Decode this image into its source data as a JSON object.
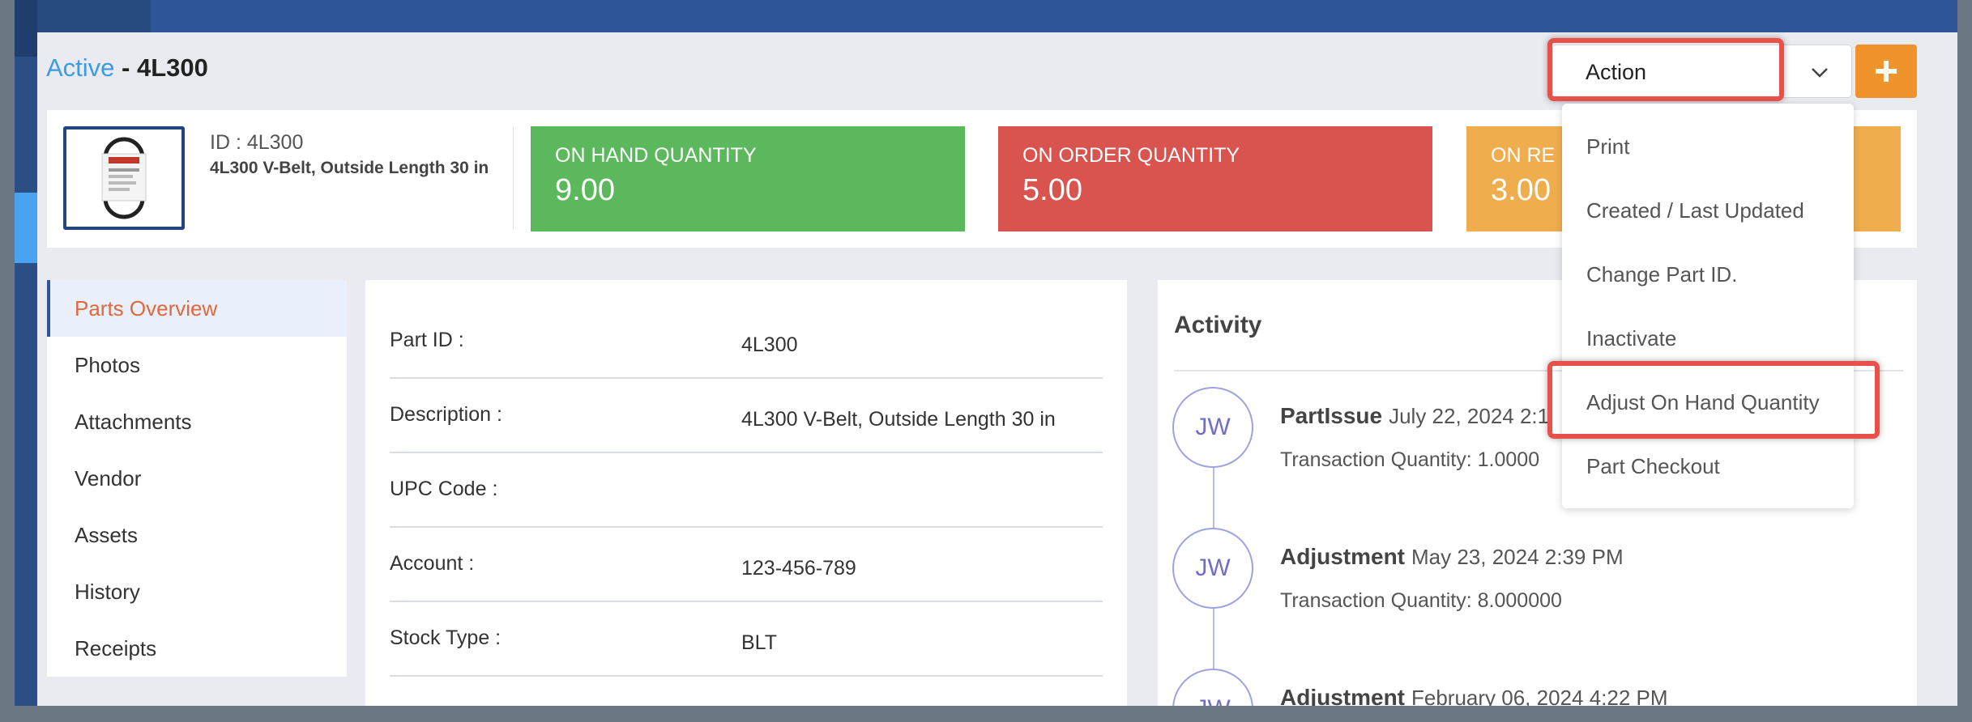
{
  "header": {
    "status": "Active",
    "separator": " - ",
    "part_id": "4L300"
  },
  "action": {
    "label": "Action",
    "menu": [
      "Print",
      "Created / Last Updated",
      "Change Part ID.",
      "Inactivate",
      "Adjust On Hand Quantity",
      "Part Checkout"
    ]
  },
  "add_button": {
    "icon": "plus-icon"
  },
  "summary": {
    "id_text": "ID : 4L300",
    "description": "4L300 V-Belt, Outside Length 30 in",
    "tiles": [
      {
        "label": "ON HAND QUANTITY",
        "value": "9.00",
        "color": "#5cb85c"
      },
      {
        "label": "ON ORDER QUANTITY",
        "value": "5.00",
        "color": "#d9534f"
      },
      {
        "label": "ON RE",
        "value": "3.00",
        "color": "#f0ad4e"
      }
    ]
  },
  "nav": {
    "items": [
      "Parts Overview",
      "Photos",
      "Attachments",
      "Vendor",
      "Assets",
      "History",
      "Receipts"
    ]
  },
  "details": {
    "rows": [
      {
        "label": "Part ID :",
        "value": "4L300"
      },
      {
        "label": "Description :",
        "value": "4L300 V-Belt, Outside Length 30 in"
      },
      {
        "label": "UPC Code :",
        "value": ""
      },
      {
        "label": "Account :",
        "value": "123-456-789"
      },
      {
        "label": "Stock Type :",
        "value": "BLT"
      }
    ]
  },
  "activity": {
    "title": "Activity",
    "events": [
      {
        "initials": "JW",
        "type": "PartIssue",
        "date": "July 22, 2024 2:1",
        "qty": "Transaction Quantity: 1.0000"
      },
      {
        "initials": "JW",
        "type": "Adjustment",
        "date": "May 23, 2024 2:39 PM",
        "qty": "Transaction Quantity: 8.000000"
      },
      {
        "initials": "JW",
        "type": "Adjustment",
        "date": "February 06, 2024 4:22 PM",
        "qty": ""
      }
    ]
  },
  "colors": {
    "accent_blue": "#3b9be3",
    "navy": "#2e5597",
    "highlight_red": "#e8504a",
    "orange": "#f0932b"
  }
}
